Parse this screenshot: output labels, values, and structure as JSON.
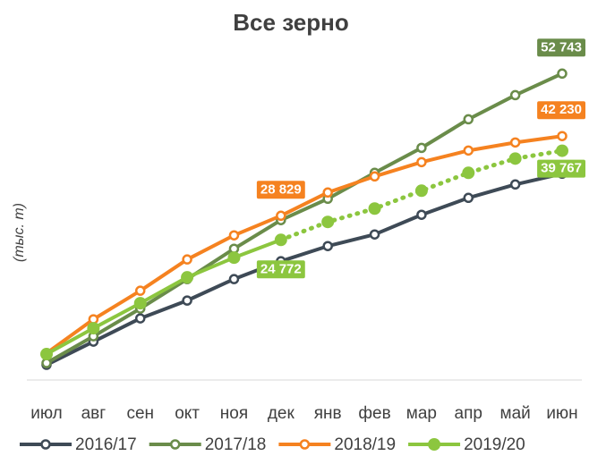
{
  "chart_data": {
    "type": "line",
    "title": "Все зерно",
    "y_label": "(тыс. т)",
    "categories": [
      "июл",
      "авг",
      "сен",
      "окт",
      "ноя",
      "дек",
      "янв",
      "фев",
      "мар",
      "апр",
      "май",
      "июн"
    ],
    "ylim": [
      0,
      57000
    ],
    "series": [
      {
        "name": "2016/17",
        "color": "#3e4a56",
        "values": [
          3755,
          7660,
          11565,
          14570,
          18175,
          21180,
          23730,
          25685,
          28990,
          31840,
          34095,
          35900
        ]
      },
      {
        "name": "2017/18",
        "color": "#6a8c4a",
        "values": [
          4055,
          8560,
          13220,
          18175,
          23280,
          28090,
          31690,
          36050,
          40250,
          45060,
          49115,
          52743
        ],
        "value_labels": [
          null,
          null,
          null,
          null,
          null,
          null,
          null,
          null,
          null,
          null,
          null,
          "52 743"
        ]
      },
      {
        "name": "2018/19",
        "color": "#f58220",
        "values": [
          5710,
          11415,
          16220,
          21480,
          25535,
          28829,
          32745,
          35450,
          37850,
          39800,
          41155,
          42230
        ],
        "value_labels": [
          null,
          null,
          null,
          null,
          null,
          "28 829",
          null,
          null,
          null,
          null,
          null,
          "42 230"
        ]
      },
      {
        "name": "2019/20",
        "color": "#8cc63f",
        "filled_markers": true,
        "dotted_from": 5,
        "values": [
          5560,
          9915,
          14120,
          18475,
          21780,
          24772,
          27790,
          30040,
          33045,
          36050,
          38450,
          39767
        ],
        "value_labels": [
          null,
          null,
          null,
          null,
          null,
          "24 772",
          null,
          null,
          null,
          null,
          null,
          "39 767"
        ]
      }
    ]
  }
}
